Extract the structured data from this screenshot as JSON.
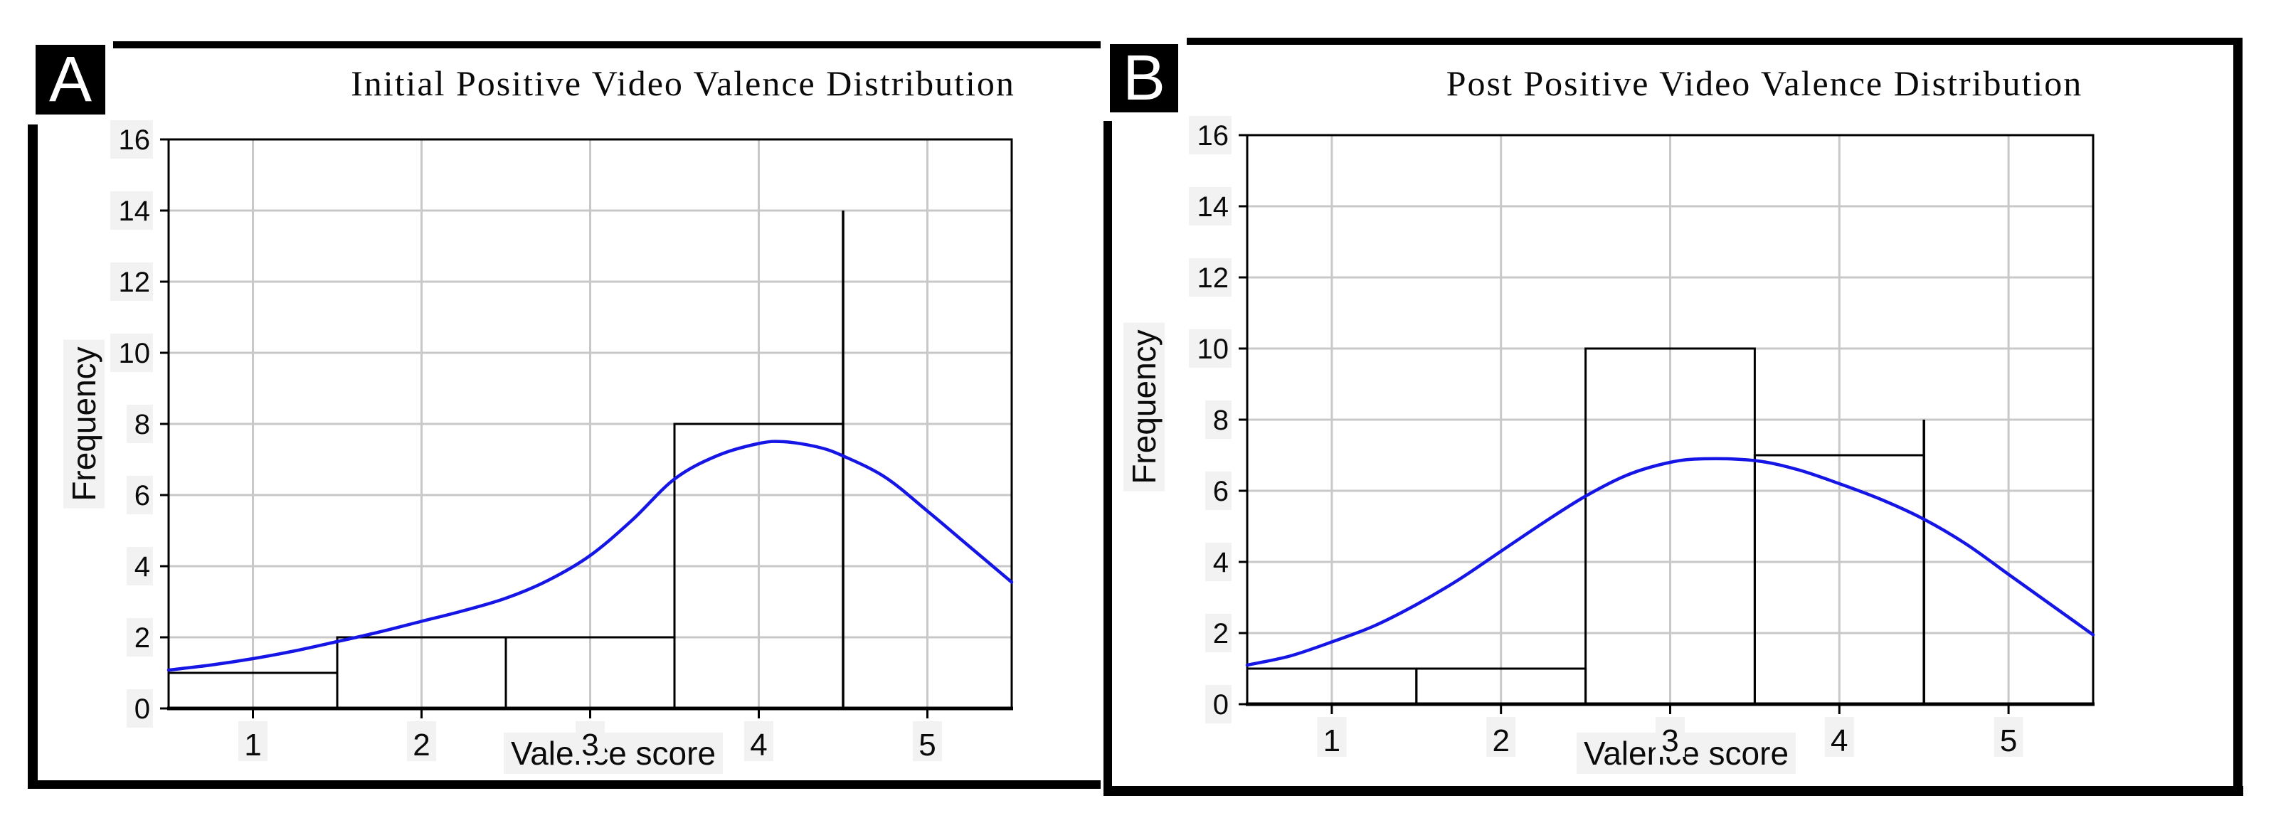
{
  "figure": {
    "background": "#ffffff",
    "grid_color": "#c8c8c8",
    "panels": [
      {
        "label": "A"
      },
      {
        "label": "B"
      }
    ]
  },
  "chart_data": [
    {
      "type": "histogram",
      "panel": "A",
      "title": "Initial Positive Video Valence Distribution",
      "xlabel": "Valence score",
      "ylabel": "Frequency",
      "xlim": [
        0.5,
        5.5
      ],
      "ylim": [
        0,
        16
      ],
      "x_ticks": [
        "1",
        "2",
        "3",
        "4",
        "5"
      ],
      "x_tick_values": [
        1,
        2,
        3,
        4,
        5
      ],
      "y_ticks": [
        "0",
        "2",
        "4",
        "6",
        "8",
        "10",
        "12",
        "14",
        "16"
      ],
      "y_tick_values": [
        0,
        2,
        4,
        6,
        8,
        10,
        12,
        14,
        16
      ],
      "grid": true,
      "legend": "none",
      "bins": [
        {
          "range": [
            0.5,
            1.5
          ],
          "count": 1
        },
        {
          "range": [
            1.5,
            2.5
          ],
          "count": 2
        },
        {
          "range": [
            2.5,
            3.5
          ],
          "count": 2
        },
        {
          "range": [
            3.5,
            4.5
          ],
          "count": 8
        }
      ],
      "spike": {
        "x": 4.5,
        "count": 14
      },
      "normal_curve": {
        "color": "#1515e6",
        "peak": {
          "x": 4.1,
          "y": 7.5
        },
        "points": [
          [
            0.5,
            1.08
          ],
          [
            0.75,
            1.22
          ],
          [
            1.0,
            1.4
          ],
          [
            1.25,
            1.62
          ],
          [
            1.5,
            1.88
          ],
          [
            1.75,
            2.15
          ],
          [
            2.0,
            2.45
          ],
          [
            2.25,
            2.75
          ],
          [
            2.5,
            3.1
          ],
          [
            2.75,
            3.6
          ],
          [
            3.0,
            4.3
          ],
          [
            3.25,
            5.3
          ],
          [
            3.5,
            6.45
          ],
          [
            3.75,
            7.1
          ],
          [
            4.0,
            7.45
          ],
          [
            4.15,
            7.5
          ],
          [
            4.35,
            7.35
          ],
          [
            4.5,
            7.1
          ],
          [
            4.75,
            6.5
          ],
          [
            5.0,
            5.55
          ],
          [
            5.25,
            4.55
          ],
          [
            5.5,
            3.55
          ]
        ]
      }
    },
    {
      "type": "histogram",
      "panel": "B",
      "title": "Post Positive Video Valence Distribution",
      "xlabel": "Valence score",
      "ylabel": "Frequency",
      "xlim": [
        0.5,
        5.5
      ],
      "ylim": [
        0,
        16
      ],
      "x_ticks": [
        "1",
        "2",
        "3",
        "4",
        "5"
      ],
      "x_tick_values": [
        1,
        2,
        3,
        4,
        5
      ],
      "y_ticks": [
        "0",
        "2",
        "4",
        "6",
        "8",
        "10",
        "12",
        "14",
        "16"
      ],
      "y_tick_values": [
        0,
        2,
        4,
        6,
        8,
        10,
        12,
        14,
        16
      ],
      "grid": true,
      "legend": "none",
      "bins": [
        {
          "range": [
            0.5,
            1.5
          ],
          "count": 1
        },
        {
          "range": [
            1.5,
            2.5
          ],
          "count": 1
        },
        {
          "range": [
            2.5,
            3.5
          ],
          "count": 10
        },
        {
          "range": [
            3.5,
            4.5
          ],
          "count": 7
        }
      ],
      "spike": {
        "x": 4.5,
        "count": 8
      },
      "normal_curve": {
        "color": "#1515e6",
        "peak": {
          "x": 3.2,
          "y": 6.9
        },
        "points": [
          [
            0.5,
            1.1
          ],
          [
            0.75,
            1.35
          ],
          [
            1.0,
            1.75
          ],
          [
            1.25,
            2.2
          ],
          [
            1.5,
            2.8
          ],
          [
            1.75,
            3.5
          ],
          [
            2.0,
            4.3
          ],
          [
            2.25,
            5.1
          ],
          [
            2.5,
            5.85
          ],
          [
            2.75,
            6.45
          ],
          [
            3.0,
            6.8
          ],
          [
            3.2,
            6.9
          ],
          [
            3.5,
            6.85
          ],
          [
            3.75,
            6.6
          ],
          [
            4.0,
            6.2
          ],
          [
            4.25,
            5.75
          ],
          [
            4.5,
            5.2
          ],
          [
            4.75,
            4.5
          ],
          [
            5.0,
            3.65
          ],
          [
            5.25,
            2.8
          ],
          [
            5.5,
            1.95
          ]
        ]
      }
    }
  ]
}
